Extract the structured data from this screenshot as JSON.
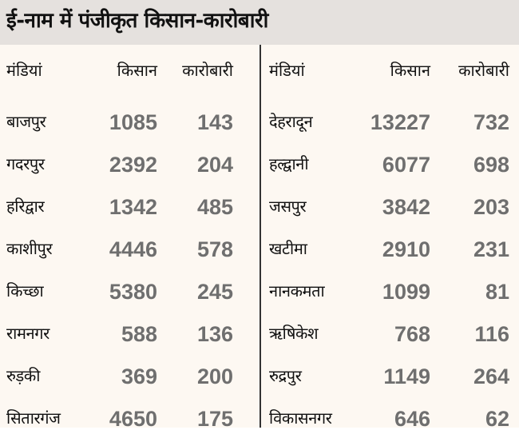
{
  "title": "ई-नाम में पंजीकृत किसान-कारोबारी",
  "headers": {
    "market": "मंडियां",
    "farmers": "किसान",
    "traders": "कारोबारी"
  },
  "left_rows": [
    {
      "market": "बाजपुर",
      "farmers": "1085",
      "traders": "143"
    },
    {
      "market": "गदरपुर",
      "farmers": "2392",
      "traders": "204"
    },
    {
      "market": "हरिद्वार",
      "farmers": "1342",
      "traders": "485"
    },
    {
      "market": "काशीपुर",
      "farmers": "4446",
      "traders": "578"
    },
    {
      "market": "किच्छा",
      "farmers": "5380",
      "traders": "245"
    },
    {
      "market": "रामनगर",
      "farmers": "588",
      "traders": "136"
    },
    {
      "market": "रुड़की",
      "farmers": "369",
      "traders": "200"
    },
    {
      "market": "सितारगंज",
      "farmers": "4650",
      "traders": "175"
    }
  ],
  "right_rows": [
    {
      "market": "देहरादून",
      "farmers": "13227",
      "traders": "732"
    },
    {
      "market": "हल्द्वानी",
      "farmers": "6077",
      "traders": "698"
    },
    {
      "market": "जसपुर",
      "farmers": "3842",
      "traders": "203"
    },
    {
      "market": "खटीमा",
      "farmers": "2910",
      "traders": "231"
    },
    {
      "market": "नानकमता",
      "farmers": "1099",
      "traders": "81"
    },
    {
      "market": "ऋषिकेश",
      "farmers": "768",
      "traders": "116"
    },
    {
      "market": "रुद्रपुर",
      "farmers": "1149",
      "traders": "264"
    },
    {
      "market": "विकासनगर",
      "farmers": "646",
      "traders": "62"
    }
  ],
  "colors": {
    "background": "#fdf8f2",
    "title_bar": "#e5e1de",
    "numbers": "#6f6f6f",
    "text": "#111111",
    "divider": "#333333"
  }
}
